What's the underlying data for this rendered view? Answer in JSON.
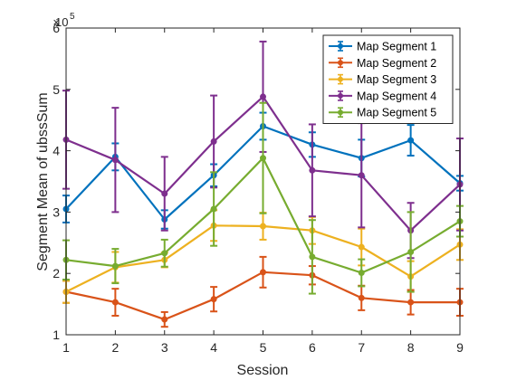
{
  "chart_data": {
    "type": "line",
    "xlabel": "Session",
    "ylabel": "Segment Mean of ubssSum",
    "y_multiplier_base": "10",
    "y_multiplier_exp": "5",
    "xlim": [
      1,
      9
    ],
    "ylim": [
      1,
      6
    ],
    "x_ticks": [
      1,
      2,
      3,
      4,
      5,
      6,
      7,
      8,
      9
    ],
    "y_ticks": [
      1,
      2,
      3,
      4,
      5,
      6
    ],
    "grid": false,
    "legend_position": "top-right",
    "x": [
      1,
      2,
      3,
      4,
      5,
      6,
      7,
      8,
      9
    ],
    "series": [
      {
        "name": "Map Segment 1",
        "color": "#0072BD",
        "values": [
          3.05,
          3.9,
          2.88,
          3.6,
          4.4,
          4.1,
          3.88,
          4.17,
          3.47
        ],
        "errors": [
          0.22,
          0.22,
          0.15,
          0.18,
          0.22,
          0.2,
          0.3,
          0.25,
          0.12
        ]
      },
      {
        "name": "Map Segment 2",
        "color": "#D95319",
        "values": [
          1.7,
          1.53,
          1.25,
          1.58,
          2.02,
          1.97,
          1.6,
          1.53,
          1.53
        ],
        "errors": [
          0.18,
          0.22,
          0.12,
          0.2,
          0.25,
          0.15,
          0.2,
          0.2,
          0.22
        ]
      },
      {
        "name": "Map Segment 3",
        "color": "#EDB120",
        "values": [
          1.7,
          2.1,
          2.22,
          2.78,
          2.77,
          2.7,
          2.43,
          1.95,
          2.47
        ],
        "errors": [
          0.18,
          0.25,
          0.12,
          0.25,
          0.22,
          0.22,
          0.3,
          0.25,
          0.25
        ]
      },
      {
        "name": "Map Segment 4",
        "color": "#7E2F8E",
        "values": [
          4.18,
          3.85,
          3.3,
          4.15,
          4.88,
          3.68,
          3.6,
          2.7,
          3.45
        ],
        "errors": [
          0.8,
          0.85,
          0.6,
          0.75,
          0.9,
          0.75,
          0.85,
          0.45,
          0.75
        ]
      },
      {
        "name": "Map Segment 5",
        "color": "#77AC30",
        "values": [
          2.22,
          2.12,
          2.33,
          3.05,
          3.88,
          2.27,
          2.01,
          2.35,
          2.85
        ],
        "errors": [
          0.32,
          0.28,
          0.22,
          0.6,
          0.9,
          0.6,
          0.22,
          0.65,
          0.25
        ]
      }
    ]
  }
}
